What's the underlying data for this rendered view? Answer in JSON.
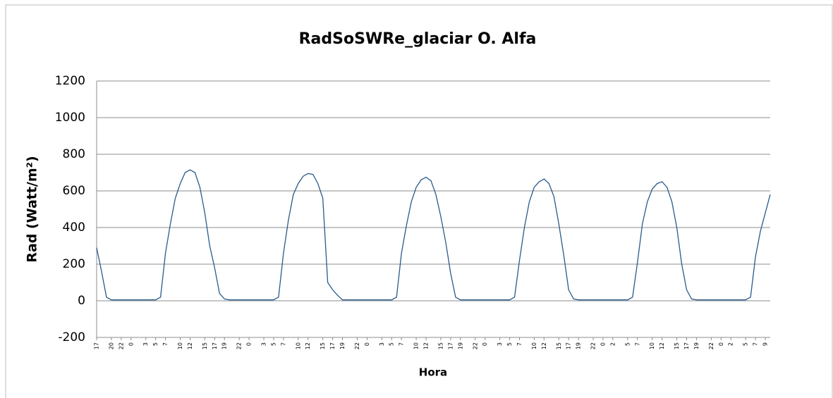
{
  "chart_data": {
    "type": "line",
    "title": "RadSoSWRe_glaciar O. Alfa",
    "y_label": "Rad (Watt/m²)",
    "x_label": "Hora",
    "color": "#2a5b8a",
    "grid": true,
    "ylim": [
      -200,
      1200
    ],
    "yticks": [
      -200,
      0,
      200,
      400,
      600,
      800,
      1000,
      1200
    ],
    "xlim": [
      0,
      137
    ],
    "xticks": [
      {
        "value": 0,
        "label": "17"
      },
      {
        "value": 3,
        "label": "20"
      },
      {
        "value": 5,
        "label": "22"
      },
      {
        "value": 7,
        "label": "0"
      },
      {
        "value": 10,
        "label": "3"
      },
      {
        "value": 12,
        "label": "5"
      },
      {
        "value": 14,
        "label": "7"
      },
      {
        "value": 17,
        "label": "10"
      },
      {
        "value": 19,
        "label": "12"
      },
      {
        "value": 22,
        "label": "15"
      },
      {
        "value": 24,
        "label": "17"
      },
      {
        "value": 26,
        "label": "19"
      },
      {
        "value": 29,
        "label": "22"
      },
      {
        "value": 31,
        "label": "0"
      },
      {
        "value": 34,
        "label": "3"
      },
      {
        "value": 36,
        "label": "5"
      },
      {
        "value": 38,
        "label": "7"
      },
      {
        "value": 41,
        "label": "10"
      },
      {
        "value": 43,
        "label": "12"
      },
      {
        "value": 46,
        "label": "15"
      },
      {
        "value": 48,
        "label": "17"
      },
      {
        "value": 50,
        "label": "19"
      },
      {
        "value": 53,
        "label": "22"
      },
      {
        "value": 55,
        "label": "0"
      },
      {
        "value": 58,
        "label": "3"
      },
      {
        "value": 60,
        "label": "5"
      },
      {
        "value": 62,
        "label": "7"
      },
      {
        "value": 65,
        "label": "10"
      },
      {
        "value": 67,
        "label": "12"
      },
      {
        "value": 70,
        "label": "15"
      },
      {
        "value": 72,
        "label": "17"
      },
      {
        "value": 74,
        "label": "19"
      },
      {
        "value": 77,
        "label": "22"
      },
      {
        "value": 79,
        "label": "0"
      },
      {
        "value": 82,
        "label": "3"
      },
      {
        "value": 84,
        "label": "5"
      },
      {
        "value": 86,
        "label": "7"
      },
      {
        "value": 89,
        "label": "10"
      },
      {
        "value": 91,
        "label": "12"
      },
      {
        "value": 94,
        "label": "15"
      },
      {
        "value": 96,
        "label": "17"
      },
      {
        "value": 98,
        "label": "19"
      },
      {
        "value": 101,
        "label": "22"
      },
      {
        "value": 103,
        "label": "0"
      },
      {
        "value": 105,
        "label": "2"
      },
      {
        "value": 108,
        "label": "5"
      },
      {
        "value": 110,
        "label": "7"
      },
      {
        "value": 113,
        "label": "10"
      },
      {
        "value": 115,
        "label": "12"
      },
      {
        "value": 118,
        "label": "15"
      },
      {
        "value": 120,
        "label": "17"
      },
      {
        "value": 122,
        "label": "19"
      },
      {
        "value": 125,
        "label": "22"
      },
      {
        "value": 127,
        "label": "0"
      },
      {
        "value": 129,
        "label": "2"
      },
      {
        "value": 132,
        "label": "5"
      },
      {
        "value": 134,
        "label": "7"
      },
      {
        "value": 136,
        "label": "9"
      }
    ],
    "x": [
      0,
      1,
      2,
      3,
      4,
      5,
      6,
      7,
      8,
      9,
      10,
      11,
      12,
      13,
      14,
      15,
      16,
      17,
      18,
      19,
      20,
      21,
      22,
      23,
      24,
      25,
      26,
      27,
      28,
      29,
      30,
      31,
      32,
      33,
      34,
      35,
      36,
      37,
      38,
      39,
      40,
      41,
      42,
      43,
      44,
      45,
      46,
      47,
      48,
      49,
      50,
      51,
      52,
      53,
      54,
      55,
      56,
      57,
      58,
      59,
      60,
      61,
      62,
      63,
      64,
      65,
      66,
      67,
      68,
      69,
      70,
      71,
      72,
      73,
      74,
      75,
      76,
      77,
      78,
      79,
      80,
      81,
      82,
      83,
      84,
      85,
      86,
      87,
      88,
      89,
      90,
      91,
      92,
      93,
      94,
      95,
      96,
      97,
      98,
      99,
      100,
      101,
      102,
      103,
      104,
      105,
      106,
      107,
      108,
      109,
      110,
      111,
      112,
      113,
      114,
      115,
      116,
      117,
      118,
      119,
      120,
      121,
      122,
      123,
      124,
      125,
      126,
      127,
      128,
      129,
      130,
      131,
      132,
      133,
      134,
      135,
      136,
      137
    ],
    "values": [
      290,
      160,
      20,
      5,
      5,
      5,
      5,
      5,
      5,
      5,
      5,
      5,
      5,
      20,
      260,
      420,
      560,
      640,
      700,
      715,
      700,
      620,
      480,
      300,
      180,
      40,
      10,
      5,
      5,
      5,
      5,
      5,
      5,
      5,
      5,
      5,
      5,
      20,
      260,
      440,
      580,
      640,
      680,
      695,
      690,
      640,
      560,
      100,
      60,
      30,
      5,
      5,
      5,
      5,
      5,
      5,
      5,
      5,
      5,
      5,
      5,
      20,
      260,
      410,
      540,
      620,
      660,
      675,
      655,
      580,
      460,
      320,
      150,
      20,
      5,
      5,
      5,
      5,
      5,
      5,
      5,
      5,
      5,
      5,
      5,
      20,
      220,
      400,
      540,
      620,
      650,
      665,
      640,
      570,
      420,
      250,
      60,
      10,
      5,
      5,
      5,
      5,
      5,
      5,
      5,
      5,
      5,
      5,
      5,
      20,
      210,
      420,
      540,
      610,
      640,
      650,
      620,
      540,
      400,
      200,
      60,
      10,
      5,
      5,
      5,
      5,
      5,
      5,
      5,
      5,
      5,
      5,
      5,
      20,
      240,
      380,
      480,
      580
    ]
  }
}
